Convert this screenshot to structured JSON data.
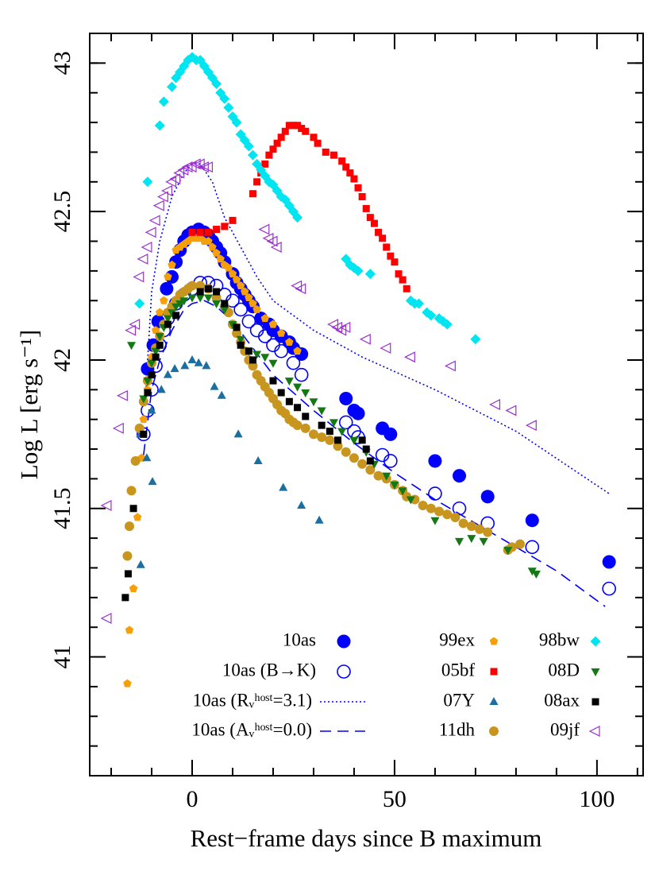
{
  "chart_data": {
    "type": "scatter",
    "xlabel": "Rest−frame days since B maximum",
    "ylabel": "Log L [erg s⁻¹]",
    "xlim": [
      -25.3,
      111.4
    ],
    "ylim": [
      40.6,
      43.1
    ],
    "xticks": [
      0,
      50,
      100
    ],
    "yticks": [
      41,
      41.5,
      42,
      42.5,
      43
    ],
    "xminorticks": [
      -20,
      -10,
      10,
      20,
      30,
      40,
      60,
      70,
      80,
      90,
      110
    ],
    "yminorticks": [
      40.7,
      40.8,
      40.9,
      41.1,
      41.2,
      41.3,
      41.4,
      41.6,
      41.7,
      41.8,
      41.9,
      42.1,
      42.2,
      42.3,
      42.4,
      42.6,
      42.7,
      42.8,
      42.9,
      43.0
    ],
    "legend": "lower right",
    "series": [
      {
        "name": "10as",
        "color": "#0000ff",
        "marker": "circle-filled",
        "x": [
          -11,
          -9.6,
          -8.4,
          -6.3,
          -5,
          -4,
          -3,
          -2,
          -1,
          0,
          1.6,
          3,
          4,
          5,
          6,
          7,
          8,
          10,
          11,
          12,
          13,
          14,
          15,
          17,
          19,
          20,
          22,
          24,
          25,
          27,
          38,
          40,
          41,
          47,
          49,
          60,
          66,
          73,
          84,
          103
        ],
        "y": [
          41.97,
          42.05,
          42.13,
          42.24,
          42.28,
          42.33,
          42.37,
          42.4,
          42.42,
          42.43,
          42.44,
          42.43,
          42.42,
          42.4,
          42.38,
          42.36,
          42.33,
          42.29,
          42.26,
          42.24,
          42.22,
          42.2,
          42.18,
          42.14,
          42.12,
          42.1,
          42.08,
          42.06,
          42.04,
          42.02,
          41.87,
          41.83,
          41.82,
          41.77,
          41.75,
          41.66,
          41.61,
          41.54,
          41.46,
          41.32
        ]
      },
      {
        "name": "10as (B→K)",
        "color": "#0000ff",
        "marker": "circle-open",
        "x": [
          -12,
          -11,
          -10,
          -9,
          -8,
          -7,
          -6,
          -4,
          -2,
          0,
          2,
          4,
          6,
          8,
          10,
          12,
          14,
          16,
          18,
          20,
          22,
          25,
          27,
          38,
          40,
          41,
          47,
          49,
          60,
          66,
          73,
          84,
          103
        ],
        "y": [
          41.75,
          41.83,
          41.9,
          41.98,
          42.05,
          42.1,
          42.14,
          42.19,
          42.22,
          42.24,
          42.26,
          42.26,
          42.25,
          42.22,
          42.2,
          42.17,
          42.13,
          42.1,
          42.08,
          42.05,
          42.03,
          41.99,
          41.95,
          41.79,
          41.76,
          41.74,
          41.68,
          41.66,
          41.55,
          41.5,
          41.45,
          41.37,
          41.23
        ]
      },
      {
        "name": "10as (Rᵥʰᵒˢᵗ=3.1)",
        "color": "#0000ff",
        "marker": "line-dotted",
        "x": [
          -11,
          -10,
          -8,
          -5,
          -2,
          0,
          2,
          5,
          8,
          12,
          16,
          20,
          30,
          42,
          60,
          80,
          103
        ],
        "y": [
          42.0,
          42.23,
          42.4,
          42.55,
          42.63,
          42.66,
          42.66,
          42.6,
          42.48,
          42.38,
          42.28,
          42.2,
          42.1,
          42.01,
          41.9,
          41.76,
          41.55
        ]
      },
      {
        "name": "10as (Aᵥʰᵒˢᵗ=0.0)",
        "color": "#0000ff",
        "marker": "line-dashed",
        "x": [
          -12,
          -10,
          -8,
          -5,
          -2,
          0,
          3,
          6,
          10,
          15,
          20,
          30,
          40,
          50,
          60,
          70,
          80,
          90,
          102
        ],
        "y": [
          41.68,
          41.9,
          42.0,
          42.1,
          42.17,
          42.19,
          42.2,
          42.18,
          42.13,
          42.04,
          41.95,
          41.83,
          41.72,
          41.62,
          41.53,
          41.45,
          41.37,
          41.29,
          41.17
        ]
      },
      {
        "name": "99ex",
        "color": "#f5a00a",
        "marker": "pentagon",
        "x": [
          -16,
          -15.5,
          -14.5,
          -13.5,
          -12.5,
          -12,
          -11,
          -10,
          -9,
          -8,
          -7,
          -6,
          -5,
          -4,
          -3,
          -2,
          -1,
          0,
          1,
          2,
          3,
          4,
          5,
          6,
          7,
          8,
          9,
          10,
          11,
          12,
          13,
          14,
          15,
          16,
          18,
          20,
          22,
          24,
          26
        ],
        "y": [
          40.91,
          41.09,
          41.23,
          41.47,
          41.67,
          41.8,
          41.9,
          42.01,
          42.1,
          42.16,
          42.2,
          42.28,
          42.32,
          42.37,
          42.38,
          42.39,
          42.4,
          42.41,
          42.41,
          42.41,
          42.4,
          42.4,
          42.38,
          42.36,
          42.34,
          42.32,
          42.31,
          42.29,
          42.27,
          42.25,
          42.23,
          42.21,
          42.19,
          42.17,
          42.14,
          42.12,
          42.09,
          42.06,
          42.03
        ]
      },
      {
        "name": "05bf",
        "color": "#ff0000",
        "marker": "square",
        "x": [
          0,
          2,
          4,
          6,
          8,
          10,
          15,
          16,
          17,
          18,
          19,
          20,
          21,
          22,
          23,
          24,
          25,
          26,
          27,
          28,
          30,
          31,
          33,
          35,
          37,
          38,
          39,
          40,
          41,
          42,
          43,
          44,
          45,
          46,
          47,
          48,
          49,
          50,
          51,
          52,
          53
        ],
        "y": [
          42.43,
          42.43,
          42.43,
          42.44,
          42.45,
          42.47,
          42.56,
          42.6,
          42.63,
          42.66,
          42.69,
          42.71,
          42.73,
          42.75,
          42.77,
          42.79,
          42.79,
          42.79,
          42.78,
          42.77,
          42.75,
          42.73,
          42.7,
          42.69,
          42.67,
          42.65,
          42.63,
          42.61,
          42.58,
          42.55,
          42.51,
          42.48,
          42.46,
          42.43,
          42.41,
          42.38,
          42.35,
          42.33,
          42.29,
          42.27,
          42.24
        ]
      },
      {
        "name": "07Y",
        "color": "#1a6fa0",
        "marker": "triangle-up",
        "x": [
          -12.7,
          -12.8,
          -11.2,
          -10,
          -9.8,
          -7.6,
          -6,
          -4.3,
          -1.8,
          0,
          1.6,
          3.5,
          5.5,
          7.3,
          11.4,
          16.3,
          22.5,
          27,
          31.4
        ],
        "y": [
          41.31,
          41.75,
          41.67,
          41.83,
          41.59,
          41.9,
          41.95,
          41.97,
          41.98,
          42.0,
          41.99,
          41.98,
          41.91,
          41.88,
          41.75,
          41.66,
          41.57,
          41.51,
          41.46
        ]
      },
      {
        "name": "11dh",
        "color": "#c8961e",
        "marker": "circle",
        "x": [
          -16,
          -15.5,
          -15,
          -14,
          -13,
          -12,
          -11,
          -10,
          -9,
          -8,
          -7,
          -6,
          -5,
          -4,
          -3,
          -2,
          -1,
          0,
          2,
          4,
          6,
          8,
          9,
          10,
          11,
          12,
          13,
          14,
          15,
          16,
          17,
          18,
          19,
          20,
          21,
          22,
          23,
          24,
          25,
          26,
          28,
          30,
          32,
          34,
          36,
          38,
          40,
          42,
          44,
          46,
          48,
          50,
          52,
          53,
          55,
          57,
          59,
          61,
          63,
          65,
          67,
          69,
          71,
          73,
          78,
          79,
          81
        ],
        "y": [
          41.34,
          41.44,
          41.56,
          41.66,
          41.77,
          41.86,
          41.93,
          41.99,
          42.04,
          42.08,
          42.12,
          42.16,
          42.18,
          42.2,
          42.22,
          42.23,
          42.24,
          42.25,
          42.25,
          42.24,
          42.21,
          42.18,
          42.16,
          42.12,
          42.09,
          42.06,
          42.03,
          42.0,
          41.98,
          41.95,
          41.93,
          41.91,
          41.89,
          41.87,
          41.85,
          41.83,
          41.82,
          41.8,
          41.79,
          41.78,
          41.77,
          41.75,
          41.74,
          41.73,
          41.71,
          41.69,
          41.67,
          41.65,
          41.63,
          41.61,
          41.6,
          41.58,
          41.56,
          41.54,
          41.53,
          41.51,
          41.5,
          41.49,
          41.48,
          41.47,
          41.45,
          41.44,
          41.43,
          41.42,
          41.36,
          41.37,
          41.38
        ]
      },
      {
        "name": "98bw",
        "color": "#00e5f0",
        "marker": "diamond",
        "x": [
          -13,
          -11,
          -8,
          -7,
          -5,
          -4,
          -3,
          -2,
          -1,
          0,
          1,
          2,
          3,
          4,
          5,
          6,
          7,
          8,
          9,
          10,
          11,
          12,
          13,
          14,
          15,
          16,
          17,
          18,
          19,
          20,
          21,
          22,
          23,
          24,
          25,
          26,
          38,
          39,
          40,
          41,
          44,
          54,
          55,
          56,
          58,
          59,
          61,
          62,
          63,
          70
        ],
        "y": [
          42.19,
          42.6,
          42.79,
          42.87,
          42.92,
          42.95,
          42.97,
          42.99,
          43.01,
          43.02,
          43.01,
          43.01,
          42.99,
          42.97,
          42.95,
          42.93,
          42.9,
          42.88,
          42.85,
          42.82,
          42.8,
          42.76,
          42.74,
          42.72,
          42.69,
          42.66,
          42.64,
          42.62,
          42.6,
          42.59,
          42.57,
          42.55,
          42.54,
          42.52,
          42.5,
          42.48,
          42.34,
          42.32,
          42.31,
          42.3,
          42.29,
          42.2,
          42.19,
          42.19,
          42.16,
          42.15,
          42.14,
          42.13,
          42.12,
          42.07
        ]
      },
      {
        "name": "08D",
        "color": "#147814",
        "marker": "triangle-down",
        "x": [
          -15,
          -12,
          -11,
          -10,
          -9,
          -8,
          -7,
          -6,
          -5,
          -4,
          -3,
          -2,
          0,
          2,
          4,
          6,
          8,
          10,
          12,
          14,
          16,
          18,
          20,
          24,
          26,
          28,
          30,
          32,
          35,
          37,
          40,
          43,
          45,
          48,
          50,
          52,
          54,
          60,
          66,
          69,
          72,
          78,
          84,
          85
        ],
        "y": [
          42.05,
          41.87,
          41.93,
          41.99,
          42.03,
          42.08,
          42.11,
          42.14,
          42.16,
          42.18,
          42.19,
          42.2,
          42.21,
          42.21,
          42.21,
          42.19,
          42.17,
          42.12,
          42.07,
          42.03,
          42.02,
          42.01,
          41.99,
          41.93,
          41.91,
          41.89,
          41.86,
          41.83,
          41.79,
          41.76,
          41.73,
          41.69,
          41.65,
          41.61,
          41.58,
          41.56,
          41.53,
          41.46,
          41.39,
          41.4,
          41.39,
          41.36,
          41.29,
          41.28
        ]
      },
      {
        "name": "08ax",
        "color": "#000000",
        "marker": "square",
        "x": [
          -16.5,
          -15.8,
          -14.5,
          -12,
          -11,
          -10,
          -9,
          -8,
          -6,
          -4,
          2,
          4,
          6,
          8,
          11,
          12,
          14,
          15,
          20,
          22,
          24,
          26,
          28,
          32,
          34,
          36,
          42,
          43,
          44
        ],
        "y": [
          41.2,
          41.28,
          41.5,
          41.75,
          41.89,
          41.95,
          42.01,
          42.05,
          42.12,
          42.15,
          42.23,
          42.24,
          42.23,
          42.19,
          42.11,
          42.05,
          42.03,
          42.0,
          41.93,
          41.89,
          41.86,
          41.84,
          41.81,
          41.78,
          41.76,
          41.73,
          41.73,
          41.7,
          41.66
        ]
      },
      {
        "name": "09jf",
        "color": "#9b30d0",
        "marker": "triangle-left",
        "x": [
          -21,
          -21,
          -18,
          -17,
          -15,
          -14,
          -13,
          -12,
          -11,
          -10,
          -9,
          -8,
          -7,
          -6,
          -5,
          -4,
          -3,
          -2,
          -1,
          0,
          1,
          2,
          3,
          4,
          18,
          19,
          20,
          21,
          26,
          27,
          35,
          36,
          37,
          38,
          43,
          48,
          54,
          64,
          75,
          79,
          84
        ],
        "y": [
          41.13,
          41.51,
          41.77,
          41.88,
          42.1,
          42.12,
          42.28,
          42.34,
          42.38,
          42.43,
          42.47,
          42.52,
          42.55,
          42.57,
          42.6,
          42.61,
          42.63,
          42.64,
          42.65,
          42.65,
          42.66,
          42.66,
          42.65,
          42.65,
          42.44,
          42.41,
          42.4,
          42.38,
          42.25,
          42.24,
          42.12,
          42.11,
          42.1,
          42.11,
          42.07,
          42.04,
          42.01,
          41.98,
          41.85,
          41.83,
          41.78
        ]
      }
    ]
  }
}
